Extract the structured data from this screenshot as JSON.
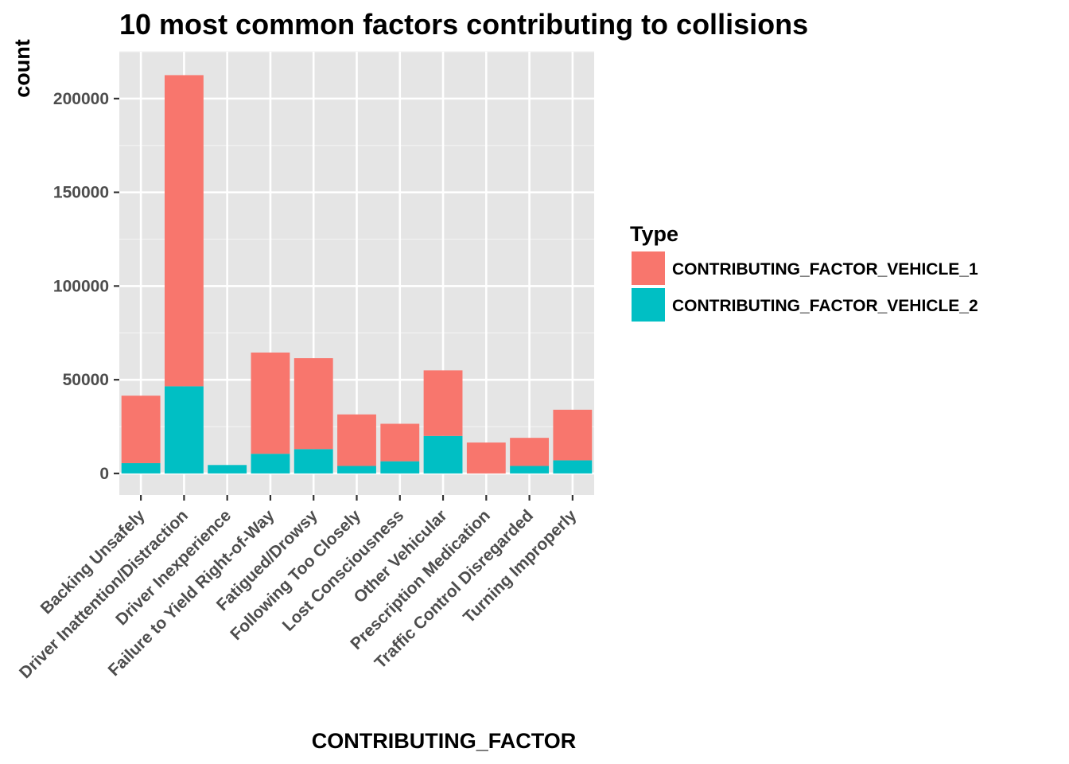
{
  "chart_data": {
    "type": "bar",
    "stacked": true,
    "title": "10 most common factors contributing to collisions",
    "xlabel": "CONTRIBUTING_FACTOR",
    "ylabel": "count",
    "ylim": [
      -11500,
      225000
    ],
    "yticks": [
      0,
      50000,
      100000,
      150000,
      200000
    ],
    "grid": true,
    "legend_position": "right",
    "legend_title": "Type",
    "categories": [
      "Backing Unsafely",
      "Driver Inattention/Distraction",
      "Driver Inexperience",
      "Failure to Yield Right-of-Way",
      "Fatigued/Drowsy",
      "Following Too Closely",
      "Lost Consciousness",
      "Other Vehicular",
      "Prescription Medication",
      "Traffic Control Disregarded",
      "Turning Improperly"
    ],
    "series": [
      {
        "name": "CONTRIBUTING_FACTOR_VEHICLE_1",
        "color": "#F8766D",
        "values": [
          36000,
          166000,
          0,
          54000,
          48500,
          27500,
          20000,
          35000,
          16500,
          15000,
          27000
        ]
      },
      {
        "name": "CONTRIBUTING_FACTOR_VEHICLE_2",
        "color": "#00BFC4",
        "values": [
          5500,
          46500,
          4500,
          10500,
          13000,
          4000,
          6500,
          20000,
          0,
          4000,
          7000
        ]
      }
    ]
  }
}
